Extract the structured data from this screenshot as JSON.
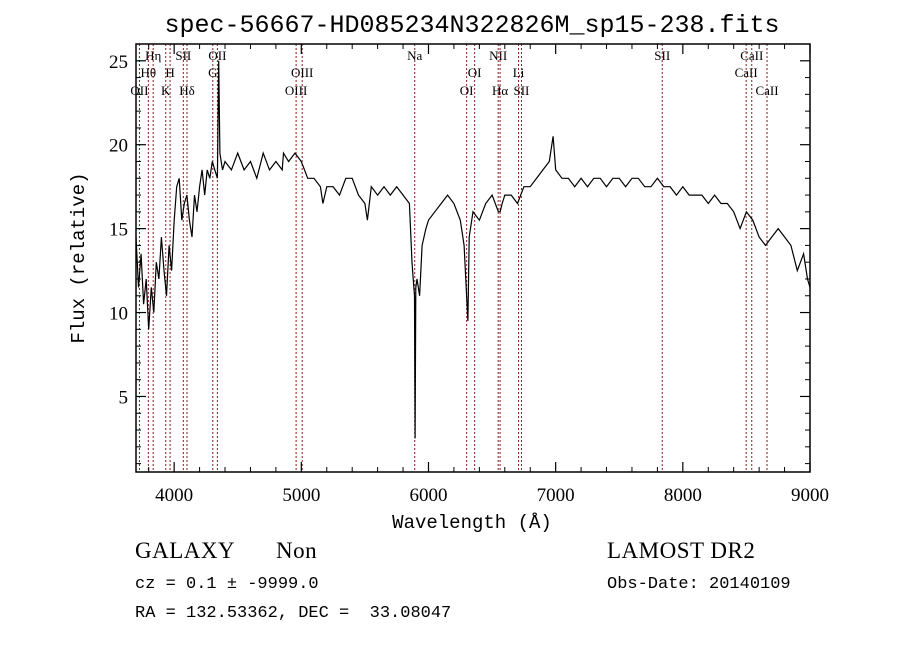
{
  "chart_data": {
    "type": "line",
    "title": "spec-56667-HD085234N322826M_sp15-238.fits",
    "xlabel": "Wavelength (Å)",
    "ylabel": "Flux (relative)",
    "xlim": [
      3700,
      9000
    ],
    "ylim": [
      0.5,
      26
    ],
    "xticks": [
      4000,
      5000,
      6000,
      7000,
      8000,
      9000
    ],
    "yticks": [
      5,
      10,
      15,
      20,
      25
    ],
    "grid": false,
    "series": [
      {
        "color": "#000000",
        "x": [
          3700,
          3720,
          3740,
          3760,
          3780,
          3800,
          3820,
          3840,
          3860,
          3880,
          3900,
          3920,
          3940,
          3960,
          3980,
          4000,
          4020,
          4040,
          4060,
          4080,
          4100,
          4120,
          4140,
          4160,
          4180,
          4200,
          4220,
          4240,
          4260,
          4280,
          4300,
          4320,
          4340,
          4350,
          4360,
          4380,
          4400,
          4450,
          4500,
          4550,
          4600,
          4650,
          4700,
          4750,
          4800,
          4850,
          4860,
          4900,
          4950,
          5000,
          5050,
          5100,
          5150,
          5170,
          5200,
          5250,
          5300,
          5350,
          5400,
          5450,
          5500,
          5520,
          5550,
          5600,
          5650,
          5700,
          5750,
          5800,
          5850,
          5870,
          5880,
          5890,
          5895,
          5900,
          5910,
          5930,
          5950,
          5980,
          6000,
          6050,
          6100,
          6150,
          6200,
          6250,
          6280,
          6300,
          6310,
          6320,
          6350,
          6400,
          6450,
          6500,
          6550,
          6563,
          6580,
          6600,
          6650,
          6700,
          6750,
          6800,
          6850,
          6900,
          6950,
          6980,
          7000,
          7050,
          7100,
          7150,
          7200,
          7250,
          7300,
          7350,
          7400,
          7450,
          7500,
          7550,
          7600,
          7650,
          7700,
          7750,
          7800,
          7850,
          7900,
          7950,
          8000,
          8050,
          8100,
          8150,
          8200,
          8250,
          8300,
          8350,
          8400,
          8450,
          8500,
          8550,
          8600,
          8650,
          8700,
          8750,
          8800,
          8850,
          8900,
          8950,
          8980,
          9000
        ],
        "y": [
          14.5,
          11.5,
          13.5,
          10.5,
          12.0,
          9.0,
          11.5,
          10.0,
          13.0,
          12.0,
          14.5,
          12.5,
          11.0,
          14.0,
          12.5,
          15.5,
          17.5,
          18.0,
          15.5,
          16.5,
          17.0,
          15.5,
          14.5,
          17.0,
          16.0,
          17.5,
          18.5,
          17.0,
          18.5,
          18.0,
          19.0,
          18.5,
          18.0,
          25.0,
          19.5,
          18.5,
          19.0,
          18.5,
          19.5,
          18.5,
          19.0,
          18.0,
          19.5,
          18.5,
          19.0,
          18.5,
          19.5,
          19.0,
          19.5,
          19.0,
          18.0,
          18.0,
          17.5,
          16.5,
          17.5,
          17.5,
          17.0,
          18.0,
          18.0,
          17.0,
          16.5,
          15.5,
          17.5,
          17.0,
          17.5,
          17.0,
          17.5,
          17.0,
          16.5,
          13.0,
          12.0,
          11.0,
          2.5,
          11.5,
          12.0,
          11.0,
          14.0,
          15.0,
          15.5,
          16.0,
          16.5,
          17.0,
          16.5,
          15.5,
          14.0,
          11.0,
          9.5,
          14.5,
          16.0,
          15.5,
          16.5,
          17.0,
          16.0,
          16.0,
          16.5,
          17.0,
          17.0,
          16.5,
          17.5,
          17.5,
          18.0,
          18.5,
          19.0,
          20.5,
          18.5,
          18.0,
          18.0,
          17.5,
          18.0,
          17.5,
          18.0,
          18.0,
          17.5,
          18.0,
          18.0,
          17.5,
          18.0,
          18.0,
          17.5,
          17.5,
          18.0,
          17.5,
          17.5,
          17.0,
          17.5,
          17.0,
          17.0,
          17.0,
          16.5,
          17.0,
          16.5,
          16.5,
          16.0,
          15.0,
          16.0,
          15.5,
          14.5,
          14.0,
          14.5,
          15.0,
          14.5,
          14.0,
          12.5,
          13.5,
          12.0,
          11.5
        ]
      }
    ],
    "spectral_lines": [
      {
        "name": "OII",
        "x": 3727,
        "row": 2
      },
      {
        "name": "Hθ",
        "x": 3797,
        "row": 1
      },
      {
        "name": "Hη",
        "x": 3835,
        "row": 0
      },
      {
        "name": "K",
        "x": 3934,
        "row": 2
      },
      {
        "name": "H",
        "x": 3968,
        "row": 1
      },
      {
        "name": "SII",
        "x": 4072,
        "row": 0
      },
      {
        "name": "Hδ",
        "x": 4101,
        "row": 2
      },
      {
        "name": "G",
        "x": 4304,
        "row": 1
      },
      {
        "name": "OII",
        "x": 4340,
        "row": 0
      },
      {
        "name": "OIII",
        "x": 4959,
        "row": 2
      },
      {
        "name": "OIII",
        "x": 5007,
        "row": 1
      },
      {
        "name": "Na",
        "x": 5892,
        "row": 0
      },
      {
        "name": "OI",
        "x": 6300,
        "row": 2
      },
      {
        "name": "OI",
        "x": 6363,
        "row": 1
      },
      {
        "name": "NII",
        "x": 6548,
        "row": 0
      },
      {
        "name": "Hα",
        "x": 6563,
        "row": 2
      },
      {
        "name": "Li",
        "x": 6708,
        "row": 1
      },
      {
        "name": "SII",
        "x": 6731,
        "row": 2
      },
      {
        "name": "SII",
        "x": 7838,
        "row": 0
      },
      {
        "name": "CaII",
        "x": 8498,
        "row": 1
      },
      {
        "name": "CaII",
        "x": 8542,
        "row": 0
      },
      {
        "name": "CaII",
        "x": 8662,
        "row": 2
      }
    ]
  },
  "info": {
    "class_label": "GALAXY",
    "subclass_label": "Non",
    "cz_line": "cz = 0.1 ± -9999.0",
    "coords_line": "RA = 132.53362, DEC =  33.08047",
    "survey": "LAMOST DR2",
    "obs_date": "Obs-Date: 20140109"
  }
}
